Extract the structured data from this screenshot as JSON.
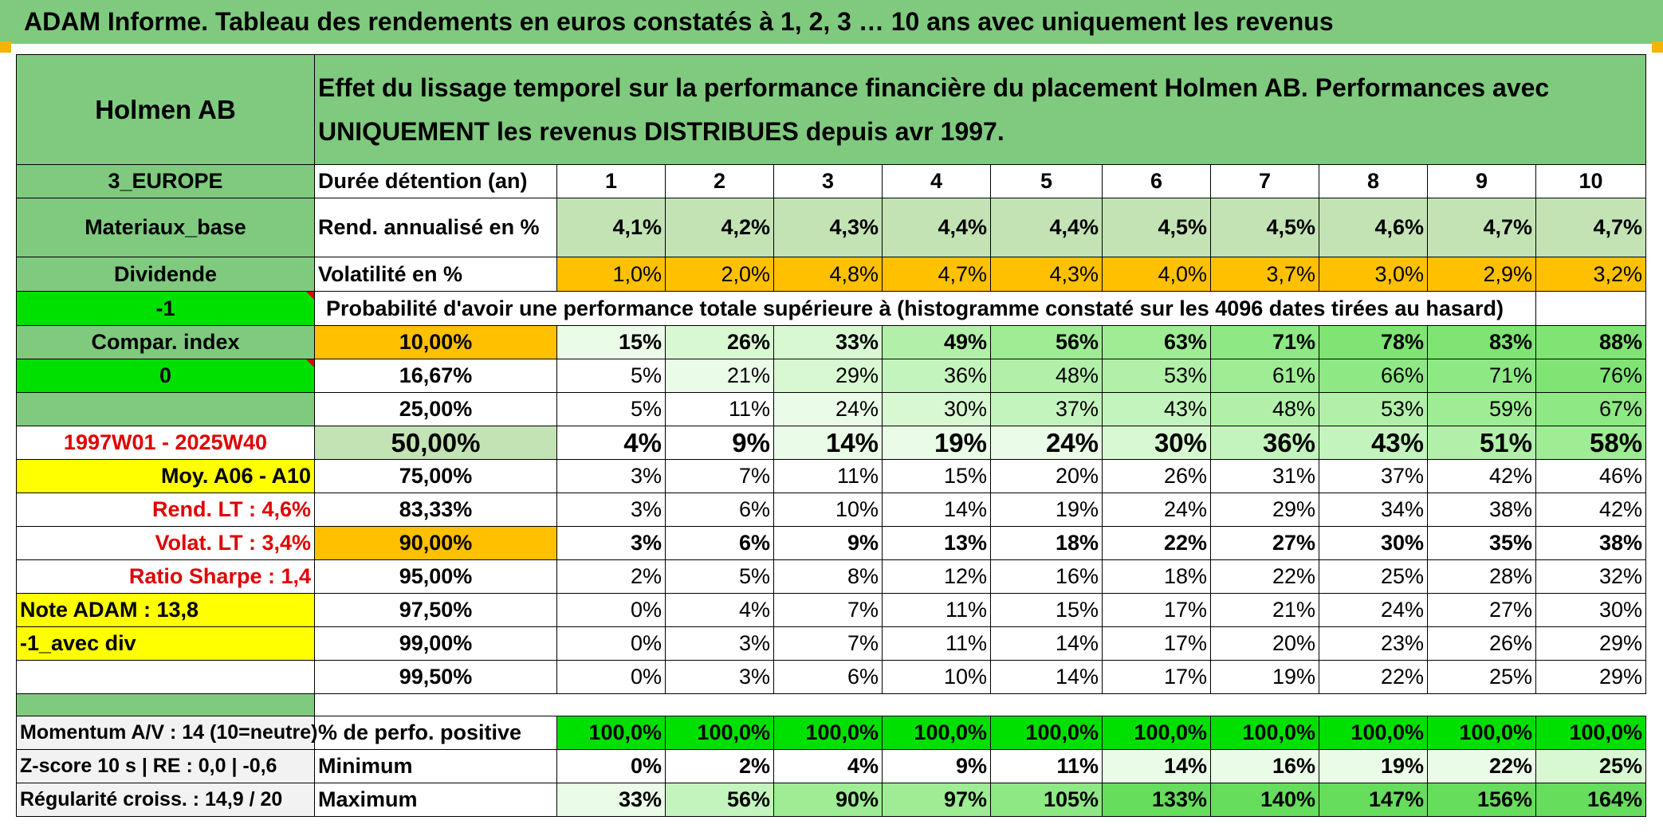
{
  "title": "ADAM Informe. Tableau des rendements en euros constatés à 1, 2, 3 … 10 ans avec uniquement les revenus",
  "colors": {
    "header_green": "#7fca7f",
    "orange": "#ffc000",
    "yellow": "#ffff00",
    "bright_green": "#00e000",
    "red_text": "#e00000"
  },
  "left": {
    "name": "Holmen AB",
    "region": "3_EUROPE",
    "sector": "Materiaux_base",
    "type": "Dividende",
    "flag1": "-1",
    "compar": "Compar. index",
    "flag2": "0",
    "period": "1997W01 - 2025W40",
    "moy": "Moy. A06 - A10",
    "rend_lt": "Rend. LT :   4,6%",
    "volat_lt": "Volat. LT :   3,4%",
    "sharpe": "Ratio Sharpe :    1,4",
    "note": "Note ADAM : 13,8",
    "avec_div": "-1_avec div",
    "momentum": "Momentum A/V : 14 (10=neutre)",
    "zscore": "Z-score 10 s | RE : 0,0 | -0,6",
    "regularite": "Régularité croiss. : 14,9 / 20"
  },
  "header_text": "Effet du lissage temporel sur la performance financière du placement Holmen AB. Performances avec UNIQUEMENT les revenus DISTRIBUES depuis avr 1997.",
  "row_labels": {
    "duree": "Durée détention (an)",
    "rend": "Rend. annualisé en %",
    "vol": "Volatilité en %",
    "proba": "Probabilité d'avoir une performance totale supérieure à (histogramme constaté sur les 4096 dates tirées au hasard)",
    "positive": "% de perfo. positive",
    "minimum": "Minimum",
    "maximum": "Maximum"
  },
  "years": [
    "1",
    "2",
    "3",
    "4",
    "5",
    "6",
    "7",
    "8",
    "9",
    "10"
  ],
  "rend": [
    "4,1%",
    "4,2%",
    "4,3%",
    "4,4%",
    "4,4%",
    "4,5%",
    "4,5%",
    "4,6%",
    "4,7%",
    "4,7%"
  ],
  "vol": [
    "1,0%",
    "2,0%",
    "4,8%",
    "4,7%",
    "4,3%",
    "4,0%",
    "3,7%",
    "3,0%",
    "2,9%",
    "3,2%"
  ],
  "thresholds": [
    {
      "label": "10,00%",
      "values": [
        "15%",
        "26%",
        "33%",
        "49%",
        "56%",
        "63%",
        "71%",
        "78%",
        "83%",
        "88%"
      ]
    },
    {
      "label": "16,67%",
      "values": [
        "5%",
        "21%",
        "29%",
        "36%",
        "48%",
        "53%",
        "61%",
        "66%",
        "71%",
        "76%"
      ]
    },
    {
      "label": "25,00%",
      "values": [
        "5%",
        "11%",
        "24%",
        "30%",
        "37%",
        "43%",
        "48%",
        "53%",
        "59%",
        "67%"
      ]
    },
    {
      "label": "50,00%",
      "values": [
        "4%",
        "9%",
        "14%",
        "19%",
        "24%",
        "30%",
        "36%",
        "43%",
        "51%",
        "58%"
      ]
    },
    {
      "label": "75,00%",
      "values": [
        "3%",
        "7%",
        "11%",
        "15%",
        "20%",
        "26%",
        "31%",
        "37%",
        "42%",
        "46%"
      ]
    },
    {
      "label": "83,33%",
      "values": [
        "3%",
        "6%",
        "10%",
        "14%",
        "19%",
        "24%",
        "29%",
        "34%",
        "38%",
        "42%"
      ]
    },
    {
      "label": "90,00%",
      "values": [
        "3%",
        "6%",
        "9%",
        "13%",
        "18%",
        "22%",
        "27%",
        "30%",
        "35%",
        "38%"
      ]
    },
    {
      "label": "95,00%",
      "values": [
        "2%",
        "5%",
        "8%",
        "12%",
        "16%",
        "18%",
        "22%",
        "25%",
        "28%",
        "32%"
      ]
    },
    {
      "label": "97,50%",
      "values": [
        "0%",
        "4%",
        "7%",
        "11%",
        "15%",
        "17%",
        "21%",
        "24%",
        "27%",
        "30%"
      ]
    },
    {
      "label": "99,00%",
      "values": [
        "0%",
        "3%",
        "7%",
        "11%",
        "14%",
        "17%",
        "20%",
        "23%",
        "26%",
        "29%"
      ]
    },
    {
      "label": "99,50%",
      "values": [
        "0%",
        "3%",
        "6%",
        "10%",
        "14%",
        "17%",
        "19%",
        "22%",
        "25%",
        "29%"
      ]
    }
  ],
  "positive": [
    "100,0%",
    "100,0%",
    "100,0%",
    "100,0%",
    "100,0%",
    "100,0%",
    "100,0%",
    "100,0%",
    "100,0%",
    "100,0%"
  ],
  "minimum": [
    "0%",
    "2%",
    "4%",
    "9%",
    "11%",
    "14%",
    "16%",
    "19%",
    "22%",
    "25%"
  ],
  "maximum": [
    "33%",
    "56%",
    "90%",
    "97%",
    "105%",
    "133%",
    "140%",
    "147%",
    "156%",
    "164%"
  ]
}
